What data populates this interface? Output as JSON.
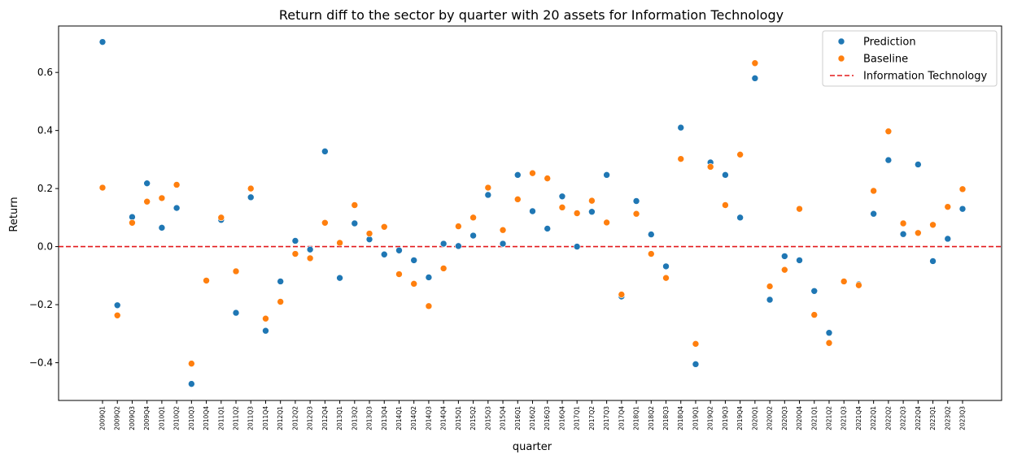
{
  "chart_data": {
    "type": "scatter",
    "title": "Return diff to the sector by quarter with 20 assets for Information Technology",
    "xlabel": "quarter",
    "ylabel": "Return",
    "ylim": [
      -0.53,
      0.76
    ],
    "yticks": [
      -0.4,
      -0.2,
      0.0,
      0.2,
      0.4,
      0.6
    ],
    "ytick_labels": [
      "−0.4",
      "−0.2",
      "0.0",
      "0.2",
      "0.4",
      "0.6"
    ],
    "grid": false,
    "legend_position": "top-right",
    "categories": [
      "2009Q1",
      "2009Q2",
      "2009Q3",
      "2009Q4",
      "2010Q1",
      "2010Q2",
      "2010Q3",
      "2010Q4",
      "2011Q1",
      "2011Q2",
      "2011Q3",
      "2011Q4",
      "2012Q1",
      "2012Q2",
      "2012Q3",
      "2012Q4",
      "2013Q1",
      "2013Q2",
      "2013Q3",
      "2013Q4",
      "2014Q1",
      "2014Q2",
      "2014Q3",
      "2014Q4",
      "2015Q1",
      "2015Q2",
      "2015Q3",
      "2015Q4",
      "2016Q1",
      "2016Q2",
      "2016Q3",
      "2016Q4",
      "2017Q1",
      "2017Q2",
      "2017Q3",
      "2017Q4",
      "2018Q1",
      "2018Q2",
      "2018Q3",
      "2018Q4",
      "2019Q1",
      "2019Q2",
      "2019Q3",
      "2019Q4",
      "2020Q1",
      "2020Q2",
      "2020Q3",
      "2020Q4",
      "2021Q1",
      "2021Q2",
      "2021Q3",
      "2021Q4",
      "2022Q1",
      "2022Q2",
      "2022Q3",
      "2022Q4",
      "2023Q1",
      "2023Q2",
      "2023Q3"
    ],
    "series": [
      {
        "name": "Prediction",
        "color": "#1f77b4",
        "values": [
          0.705,
          -0.202,
          0.102,
          0.218,
          0.065,
          0.133,
          -0.473,
          null,
          0.092,
          -0.228,
          0.17,
          -0.29,
          -0.12,
          0.02,
          -0.01,
          0.328,
          -0.108,
          0.08,
          0.025,
          -0.027,
          -0.013,
          -0.047,
          -0.106,
          0.01,
          0.002,
          0.038,
          0.178,
          0.01,
          0.247,
          0.122,
          0.062,
          0.173,
          0.0,
          0.12,
          0.247,
          -0.172,
          0.157,
          0.042,
          -0.068,
          0.41,
          -0.405,
          0.29,
          0.247,
          0.1,
          0.58,
          -0.183,
          -0.033,
          -0.047,
          -0.153,
          -0.297,
          null,
          -0.13,
          0.113,
          0.298,
          0.043,
          0.283,
          -0.05,
          0.027,
          0.13
        ]
      },
      {
        "name": "Baseline",
        "color": "#ff7f0e",
        "values": [
          0.203,
          -0.237,
          0.082,
          0.155,
          0.167,
          0.213,
          -0.403,
          -0.117,
          0.1,
          -0.085,
          0.2,
          -0.248,
          -0.19,
          -0.025,
          -0.04,
          0.082,
          0.013,
          0.143,
          0.045,
          0.068,
          -0.095,
          -0.128,
          -0.205,
          -0.075,
          0.07,
          0.1,
          0.203,
          0.057,
          0.163,
          0.253,
          0.235,
          0.135,
          0.115,
          0.158,
          0.083,
          -0.165,
          0.113,
          -0.025,
          -0.108,
          0.302,
          -0.335,
          0.275,
          0.143,
          0.317,
          0.632,
          -0.137,
          -0.08,
          0.13,
          -0.235,
          -0.332,
          -0.12,
          -0.133,
          0.192,
          0.397,
          0.08,
          0.047,
          0.075,
          0.137,
          0.198
        ]
      }
    ],
    "reference_line": {
      "name": "Information Technology",
      "y": 0.0,
      "color": "#e31a1c",
      "style": "dashed"
    }
  }
}
